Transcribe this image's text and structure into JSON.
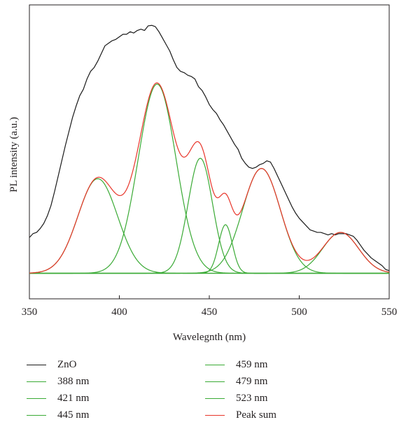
{
  "chart_data": {
    "type": "line",
    "xlabel": "Wavelegnth (nm)",
    "ylabel": "PL intensity (a.u.)",
    "xlim": [
      350,
      550
    ],
    "xticks": [
      350,
      400,
      450,
      500,
      550
    ],
    "ylim": [
      -0.1,
      1.05
    ],
    "yticks_shown": false,
    "grid": false,
    "legend_position": "bottom, two columns",
    "baseline": 0.0,
    "colors": {
      "data": "#1a1a1a",
      "fit": "#3aaa35",
      "sum": "#e8352a"
    },
    "components": [
      {
        "name": "388 nm",
        "center": 388,
        "amplitude": 0.37,
        "sigma": 11.0
      },
      {
        "name": "421 nm",
        "center": 421,
        "amplitude": 0.74,
        "sigma": 10.5
      },
      {
        "name": "445 nm",
        "center": 445,
        "amplitude": 0.45,
        "sigma": 6.8
      },
      {
        "name": "459 nm",
        "center": 459,
        "amplitude": 0.19,
        "sigma": 3.8
      },
      {
        "name": "479 nm",
        "center": 479,
        "amplitude": 0.41,
        "sigma": 10.5
      },
      {
        "name": "523 nm",
        "center": 523,
        "amplitude": 0.16,
        "sigma": 10.0
      }
    ],
    "series": [
      {
        "name": "ZnO",
        "color": "#1a1a1a",
        "x": [
          350,
          352,
          354,
          356,
          358,
          360,
          362,
          364,
          366,
          368,
          370,
          372,
          374,
          376,
          378,
          380,
          382,
          384,
          386,
          388,
          390,
          392,
          394,
          396,
          398,
          400,
          402,
          404,
          406,
          408,
          410,
          412,
          414,
          416,
          418,
          420,
          422,
          424,
          426,
          428,
          430,
          432,
          434,
          436,
          438,
          440,
          442,
          444,
          446,
          448,
          450,
          452,
          454,
          456,
          458,
          460,
          462,
          464,
          466,
          468,
          470,
          472,
          474,
          476,
          478,
          480,
          482,
          484,
          486,
          488,
          490,
          492,
          494,
          496,
          498,
          500,
          502,
          504,
          506,
          508,
          510,
          512,
          514,
          516,
          518,
          520,
          522,
          524,
          526,
          528,
          530,
          532,
          534,
          536,
          538,
          540,
          542,
          544,
          546,
          548,
          550
        ],
        "y": [
          0.14,
          0.155,
          0.16,
          0.175,
          0.195,
          0.225,
          0.265,
          0.32,
          0.38,
          0.44,
          0.5,
          0.555,
          0.61,
          0.655,
          0.695,
          0.72,
          0.76,
          0.79,
          0.805,
          0.83,
          0.86,
          0.89,
          0.9,
          0.91,
          0.915,
          0.925,
          0.935,
          0.935,
          0.945,
          0.94,
          0.95,
          0.955,
          0.95,
          0.968,
          0.97,
          0.965,
          0.945,
          0.92,
          0.895,
          0.87,
          0.835,
          0.805,
          0.79,
          0.785,
          0.775,
          0.77,
          0.76,
          0.73,
          0.715,
          0.69,
          0.66,
          0.64,
          0.625,
          0.6,
          0.58,
          0.555,
          0.53,
          0.505,
          0.485,
          0.45,
          0.43,
          0.415,
          0.41,
          0.415,
          0.425,
          0.43,
          0.44,
          0.435,
          0.41,
          0.38,
          0.35,
          0.32,
          0.29,
          0.26,
          0.235,
          0.215,
          0.2,
          0.185,
          0.17,
          0.165,
          0.16,
          0.16,
          0.155,
          0.15,
          0.155,
          0.15,
          0.155,
          0.155,
          0.155,
          0.15,
          0.145,
          0.13,
          0.11,
          0.09,
          0.075,
          0.06,
          0.05,
          0.04,
          0.03,
          0.015,
          0.01
        ]
      },
      {
        "name": "388 nm",
        "color": "#3aaa35"
      },
      {
        "name": "421 nm",
        "color": "#3aaa35"
      },
      {
        "name": "445 nm",
        "color": "#3aaa35"
      },
      {
        "name": "459 nm",
        "color": "#3aaa35"
      },
      {
        "name": "479 nm",
        "color": "#3aaa35"
      },
      {
        "name": "523 nm",
        "color": "#3aaa35"
      },
      {
        "name": "Peak sum",
        "color": "#e8352a",
        "computed": "sum of components"
      }
    ]
  },
  "legend": {
    "col1": [
      {
        "label": "ZnO",
        "color": "#1a1a1a"
      },
      {
        "label": "388 nm",
        "color": "#3aaa35"
      },
      {
        "label": "421 nm",
        "color": "#3aaa35"
      },
      {
        "label": "445 nm",
        "color": "#3aaa35"
      }
    ],
    "col2": [
      {
        "label": "459 nm",
        "color": "#3aaa35"
      },
      {
        "label": "479 nm",
        "color": "#3aaa35"
      },
      {
        "label": "523 nm",
        "color": "#3aaa35"
      },
      {
        "label": "Peak sum",
        "color": "#e8352a"
      }
    ]
  }
}
